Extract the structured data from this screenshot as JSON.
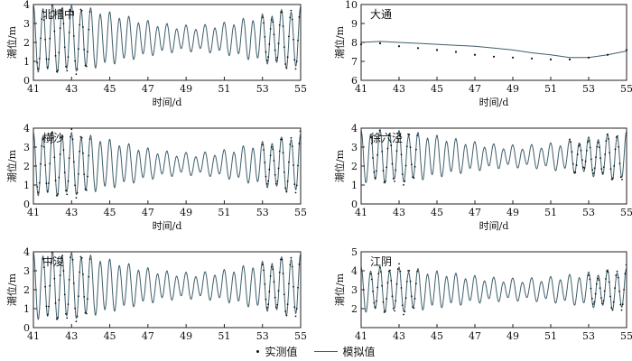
{
  "chart_data": [
    {
      "type": "line",
      "title": "北槽中",
      "xlabel": "时间/d",
      "ylabel": "潮位/m",
      "xlim": [
        41,
        55
      ],
      "ylim": [
        0,
        4
      ],
      "xticks": [
        41,
        43,
        45,
        47,
        49,
        51,
        53,
        55
      ],
      "yticks": [
        0,
        1,
        2,
        3,
        4
      ],
      "series": [
        {
          "name": "模拟值",
          "kind": "tidal",
          "mean": 2.2,
          "amp_min": 0.6,
          "amp_max": 1.7,
          "period_days": 0.5
        },
        {
          "name": "实测值",
          "kind": "points",
          "segments": [
            [
              41.2,
              44.0
            ],
            [
              53.0,
              55.0
            ]
          ]
        }
      ]
    },
    {
      "type": "line",
      "title": "大通",
      "xlabel": "时间/d",
      "ylabel": "潮位/m",
      "xlim": [
        41,
        55
      ],
      "ylim": [
        6,
        10
      ],
      "xticks": [
        41,
        43,
        45,
        47,
        49,
        51,
        53,
        55
      ],
      "yticks": [
        6,
        7,
        8,
        9,
        10
      ],
      "series": [
        {
          "name": "模拟值",
          "x": [
            41,
            42,
            43,
            44,
            45,
            46,
            47,
            48,
            49,
            50,
            51,
            52,
            53,
            54,
            55
          ],
          "y": [
            8.0,
            8.05,
            8.0,
            7.95,
            7.9,
            7.85,
            7.8,
            7.7,
            7.6,
            7.45,
            7.35,
            7.2,
            7.2,
            7.35,
            7.55
          ]
        },
        {
          "name": "实测值",
          "x": [
            41,
            42,
            43,
            44,
            45,
            46,
            47,
            48,
            49,
            50,
            51,
            52,
            53,
            54,
            55
          ],
          "y": [
            7.9,
            7.95,
            7.8,
            7.7,
            7.6,
            7.5,
            7.35,
            7.25,
            7.2,
            7.15,
            7.1,
            7.1,
            7.2,
            7.35,
            7.6
          ]
        }
      ]
    },
    {
      "type": "line",
      "title": "横沙",
      "xlabel": "时间/d",
      "ylabel": "潮位/m",
      "xlim": [
        41,
        55
      ],
      "ylim": [
        0,
        4
      ],
      "xticks": [
        41,
        43,
        45,
        47,
        49,
        51,
        53,
        55
      ],
      "yticks": [
        0,
        1,
        2,
        3,
        4
      ],
      "series": [
        {
          "name": "模拟值",
          "kind": "tidal",
          "mean": 2.1,
          "amp_min": 0.5,
          "amp_max": 1.6,
          "period_days": 0.5
        },
        {
          "name": "实测值",
          "kind": "points",
          "segments": [
            [
              41.2,
              44.0
            ],
            [
              53.0,
              55.0
            ]
          ]
        }
      ]
    },
    {
      "type": "line",
      "title": "徐六泾",
      "xlabel": "时间/d",
      "ylabel": "潮位/m",
      "xlim": [
        41,
        55
      ],
      "ylim": [
        0,
        4
      ],
      "xticks": [
        41,
        43,
        45,
        47,
        49,
        51,
        53,
        55
      ],
      "yticks": [
        0,
        1,
        2,
        3,
        4
      ],
      "series": [
        {
          "name": "模拟值",
          "kind": "tidal",
          "mean": 2.5,
          "amp_min": 0.5,
          "amp_max": 1.3,
          "period_days": 0.5
        },
        {
          "name": "实测值",
          "kind": "points",
          "segments": [
            [
              41.5,
              44.0
            ],
            [
              52.0,
              54.8
            ]
          ]
        }
      ]
    },
    {
      "type": "line",
      "title": "中浚",
      "xlabel": "时间/d",
      "ylabel": "潮位/m",
      "xlim": [
        41,
        55
      ],
      "ylim": [
        0,
        4
      ],
      "xticks": [
        41,
        43,
        45,
        47,
        49,
        51,
        53,
        55
      ],
      "yticks": [
        0,
        1,
        2,
        3,
        4
      ],
      "series": [
        {
          "name": "模拟值",
          "kind": "tidal",
          "mean": 2.2,
          "amp_min": 0.6,
          "amp_max": 1.7,
          "period_days": 0.5
        },
        {
          "name": "实测值",
          "kind": "points",
          "segments": [
            [
              41.5,
              44.0
            ],
            [
              53.0,
              55.0
            ]
          ]
        }
      ]
    },
    {
      "type": "line",
      "title": "江阴",
      "xlabel": "时间/d",
      "ylabel": "潮位/m",
      "xlim": [
        41,
        55
      ],
      "ylim": [
        1,
        5
      ],
      "xticks": [
        41,
        43,
        45,
        47,
        49,
        51,
        53,
        55
      ],
      "yticks": [
        2,
        3,
        4,
        5
      ],
      "series": [
        {
          "name": "模拟值",
          "kind": "tidal",
          "mean": 3.0,
          "amp_min": 0.5,
          "amp_max": 1.1,
          "period_days": 0.5
        },
        {
          "name": "实测值",
          "kind": "points",
          "segments": [
            [
              41.5,
              44.0
            ],
            [
              53.0,
              55.0
            ]
          ]
        }
      ]
    }
  ],
  "legend": {
    "observed": "实测值",
    "simulated": "模拟值"
  }
}
